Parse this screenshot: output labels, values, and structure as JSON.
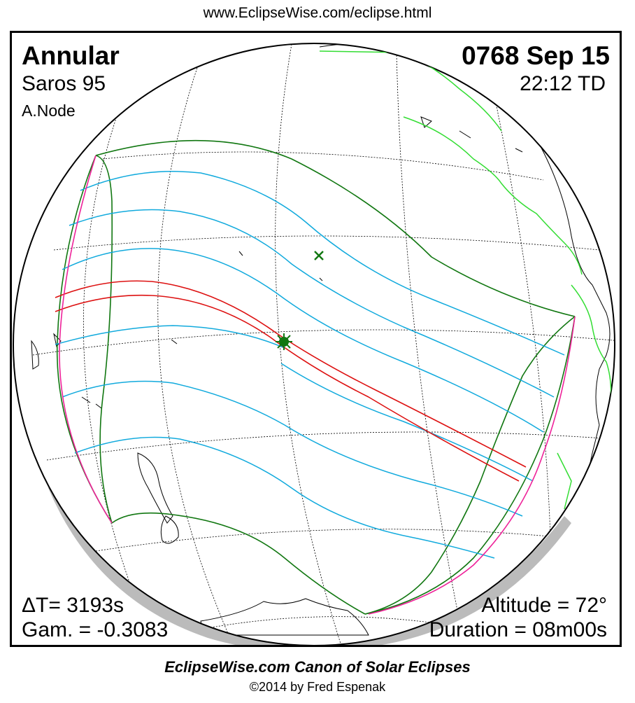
{
  "header": {
    "url": "www.EclipseWise.com/eclipse.html"
  },
  "eclipse": {
    "type": "Annular",
    "date": "0768 Sep 15",
    "saros": "Saros  95",
    "time": "22:12 TD",
    "node": "A.Node",
    "delta_t": "ΔT=   3193s",
    "gamma": "Gam. = -0.3083",
    "altitude": "Altitude = 72°",
    "duration": "Duration = 08m00s"
  },
  "footer": {
    "canon": "EclipseWise.com Canon of Solar Eclipses",
    "copyright": "©2014 by Fred Espenak"
  },
  "colors": {
    "background": "#ffffff",
    "frame": "#000000",
    "coastline": "#000000",
    "coastline_americas": "#33dd33",
    "graticule": "#000000",
    "penumbra_limits": "#117711",
    "magnitude_lines": "#11aadd",
    "central_path": "#dd1111",
    "sunrise_sunset": "#ee2299",
    "globe_shadow": "#bbbbbb",
    "greatest_eclipse_marker": "#117711"
  },
  "icons": {
    "greatest_eclipse": "star-marker",
    "subsolar_point": "x-marker"
  }
}
